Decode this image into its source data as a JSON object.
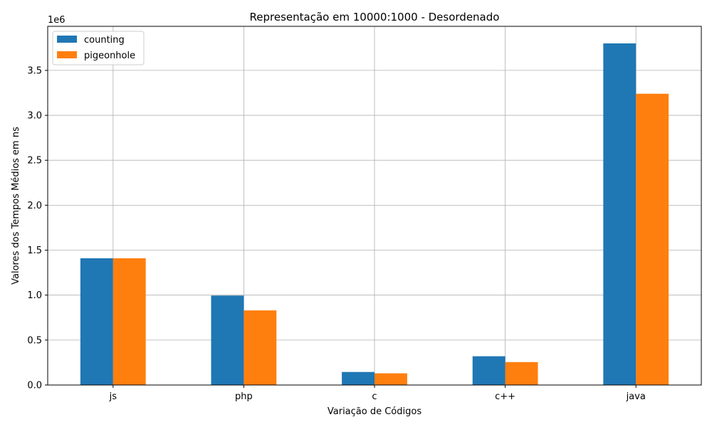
{
  "chart_data": {
    "type": "bar",
    "title": "Representação em 10000:1000 - Desordenado",
    "xlabel": "Variação de Códigos",
    "ylabel": "Valores dos Tempos Médios em ns",
    "y_offset_label": "1e6",
    "y_scale": 1000000,
    "categories": [
      "js",
      "php",
      "c",
      "c++",
      "java"
    ],
    "series": [
      {
        "name": "counting",
        "color": "#1f77b4",
        "values": [
          1410000,
          995000,
          145000,
          320000,
          3800000
        ]
      },
      {
        "name": "pigeonhole",
        "color": "#ff7f0e",
        "values": [
          1410000,
          830000,
          130000,
          255000,
          3240000
        ]
      }
    ],
    "ylim": [
      0,
      3990000
    ],
    "yticks": [
      0,
      500000,
      1000000,
      1500000,
      2000000,
      2500000,
      3000000,
      3500000
    ],
    "ytick_labels": [
      "0.0",
      "0.5",
      "1.0",
      "1.5",
      "2.0",
      "2.5",
      "3.0",
      "3.5"
    ],
    "grid": true,
    "legend_position": "top-left"
  }
}
